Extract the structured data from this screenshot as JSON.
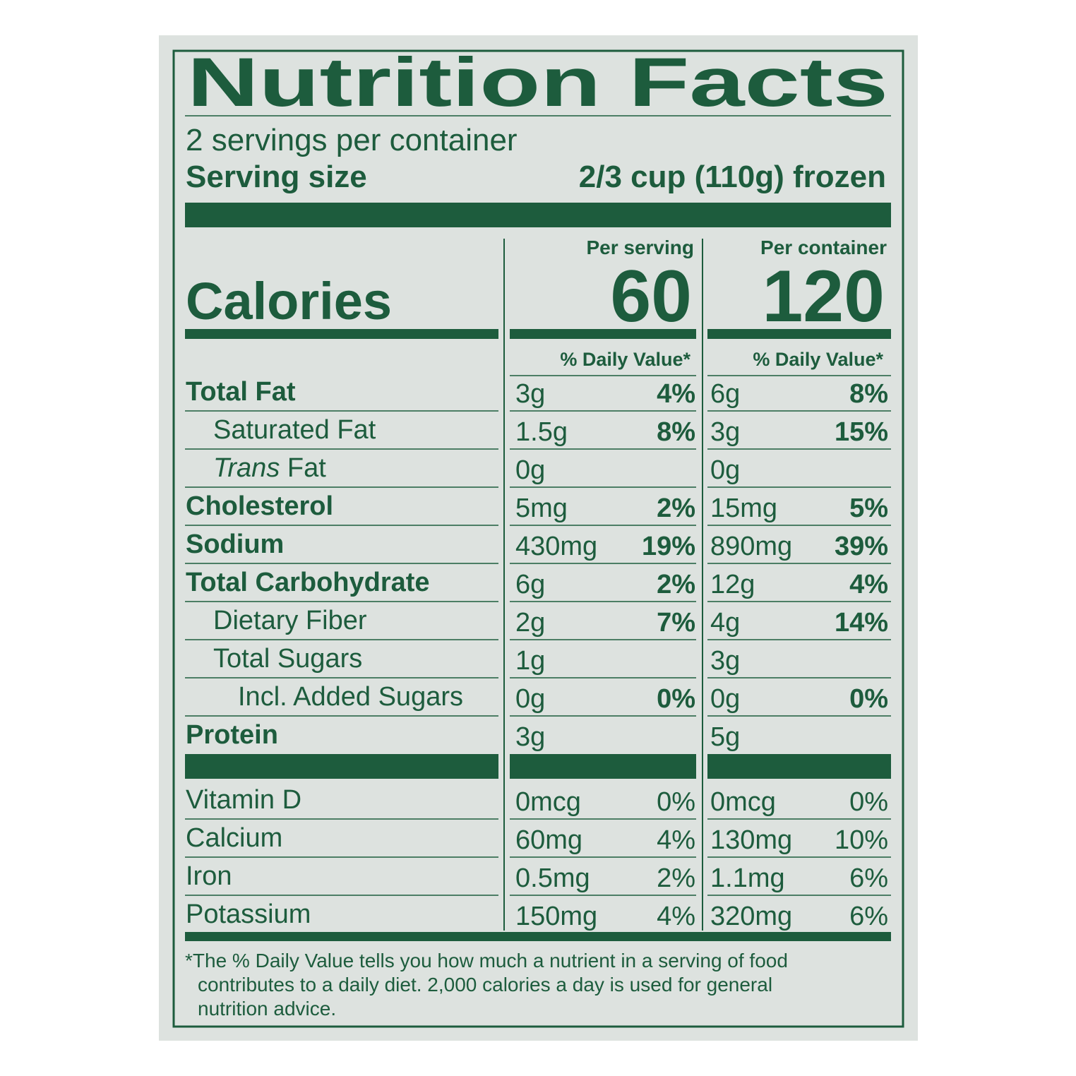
{
  "title": "Nutrition Facts",
  "servings": "2 servings per container",
  "serving_size": {
    "label": "Serving size",
    "value": "2/3 cup (110g) frozen"
  },
  "calories_label": "Calories",
  "columns": [
    {
      "heading": "Per serving",
      "calories": "60",
      "dv_header": "% Daily Value*"
    },
    {
      "heading": "Per container",
      "calories": "120",
      "dv_header": "% Daily Value*"
    }
  ],
  "nutrients": [
    {
      "name": "Total Fat",
      "style": "bold",
      "values": [
        {
          "amount": "3g",
          "dv": "4%"
        },
        {
          "amount": "6g",
          "dv": "8%"
        }
      ]
    },
    {
      "name": "Saturated Fat",
      "style": "indent",
      "values": [
        {
          "amount": "1.5g",
          "dv": "8%"
        },
        {
          "amount": "3g",
          "dv": "15%"
        }
      ]
    },
    {
      "name_italic": "Trans",
      "name": " Fat",
      "style": "indent",
      "values": [
        {
          "amount": "0g"
        },
        {
          "amount": "0g"
        }
      ]
    },
    {
      "name": "Cholesterol",
      "style": "bold",
      "values": [
        {
          "amount": "5mg",
          "dv": "2%"
        },
        {
          "amount": "15mg",
          "dv": "5%"
        }
      ]
    },
    {
      "name": "Sodium",
      "style": "bold",
      "values": [
        {
          "amount": "430mg",
          "dv": "19%"
        },
        {
          "amount": "890mg",
          "dv": "39%"
        }
      ]
    },
    {
      "name": "Total Carbohydrate",
      "style": "bold",
      "values": [
        {
          "amount": "6g",
          "dv": "2%"
        },
        {
          "amount": "12g",
          "dv": "4%"
        }
      ]
    },
    {
      "name": "Dietary Fiber",
      "style": "indent",
      "values": [
        {
          "amount": "2g",
          "dv": "7%"
        },
        {
          "amount": "4g",
          "dv": "14%"
        }
      ]
    },
    {
      "name": "Total Sugars",
      "style": "indent",
      "values": [
        {
          "amount": "1g"
        },
        {
          "amount": "3g"
        }
      ]
    },
    {
      "name": "Incl. Added Sugars",
      "style": "indent2",
      "values": [
        {
          "amount": "0g",
          "dv": "0%"
        },
        {
          "amount": "0g",
          "dv": "0%"
        }
      ]
    },
    {
      "name": "Protein",
      "style": "bold",
      "values": [
        {
          "amount": "3g"
        },
        {
          "amount": "5g"
        }
      ]
    }
  ],
  "vitamins": [
    {
      "name": "Vitamin D",
      "values": [
        {
          "amount": "0mcg",
          "dv": "0%"
        },
        {
          "amount": "0mcg",
          "dv": "0%"
        }
      ]
    },
    {
      "name": "Calcium",
      "values": [
        {
          "amount": "60mg",
          "dv": "4%"
        },
        {
          "amount": "130mg",
          "dv": "10%"
        }
      ]
    },
    {
      "name": "Iron",
      "values": [
        {
          "amount": "0.5mg",
          "dv": "2%"
        },
        {
          "amount": "1.1mg",
          "dv": "6%"
        }
      ]
    },
    {
      "name": "Potassium",
      "values": [
        {
          "amount": "150mg",
          "dv": "4%"
        },
        {
          "amount": "320mg",
          "dv": "6%"
        }
      ]
    }
  ],
  "footnote": [
    "*The % Daily Value tells you how much a nutrient in a serving of food",
    "contributes to a daily diet. 2,000 calories a day is used for general",
    "nutrition advice."
  ]
}
